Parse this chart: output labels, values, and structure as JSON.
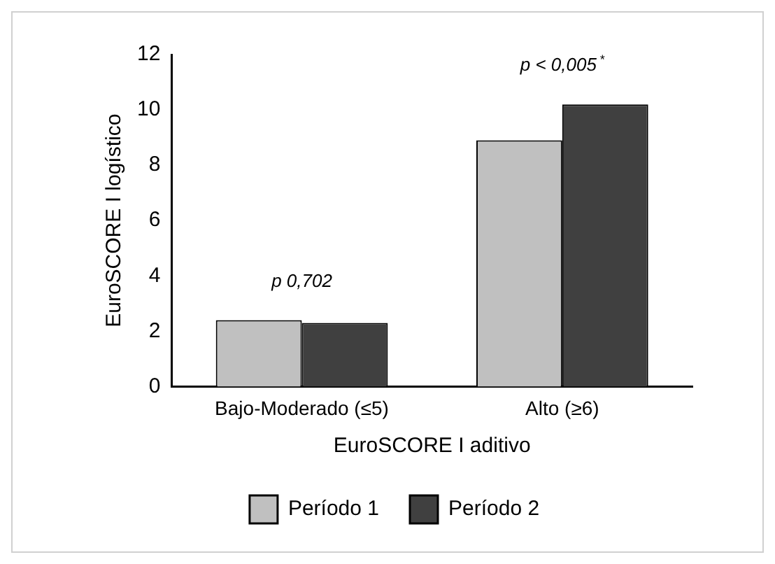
{
  "chart_data": {
    "type": "bar",
    "xlabel": "EuroSCORE I aditivo",
    "ylabel": "EuroSCORE I logístico",
    "categories": [
      "Bajo-Moderado (≤5)",
      "Alto (≥6)"
    ],
    "series": [
      {
        "name": "Período 1",
        "color": "#c0c0c0",
        "values": [
          2.4,
          8.9
        ]
      },
      {
        "name": "Período 2",
        "color": "#404040",
        "values": [
          2.3,
          10.2
        ]
      }
    ],
    "ylim": [
      0,
      12
    ],
    "yticks": [
      0,
      2,
      4,
      6,
      8,
      10,
      12
    ],
    "grid": false,
    "legend": "bottom",
    "annotations": [
      "p 0,702",
      "p < 0,005$^{*}$"
    ]
  }
}
